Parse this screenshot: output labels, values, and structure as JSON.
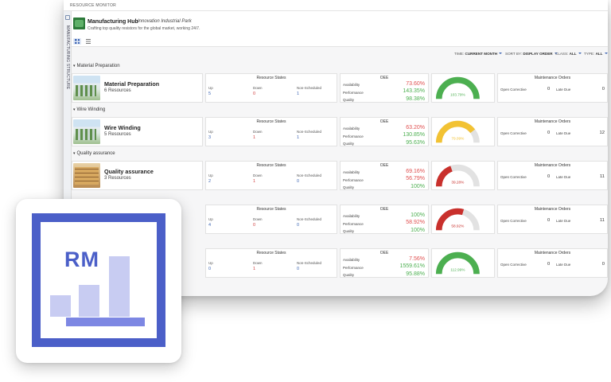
{
  "app": {
    "title": "RESOURCE MONITOR",
    "side_label": "MANUFACTURING STRUCTURE"
  },
  "header": {
    "title": "Manufacturing Hub",
    "location": "Innovation Industrial Park",
    "description": "Crafting top quality resistors for the global market, working 24/7."
  },
  "filters": [
    {
      "label": "TIME:",
      "value": "CURRENT MONTH"
    },
    {
      "label": "SORT BY:",
      "value": "DISPLAY ORDER"
    },
    {
      "label": "CLASS:",
      "value": "ALL"
    },
    {
      "label": "TYPE:",
      "value": "ALL"
    }
  ],
  "card_labels": {
    "resource_states": "Resource States",
    "up": "Up",
    "down": "Down",
    "non_scheduled": "Non-Scheduled",
    "oee": "OEE",
    "availability": "Availability",
    "performance": "Performance",
    "quality": "Quality",
    "maintenance": "Maintenance Orders",
    "open_corrective": "Open Corrective",
    "late_due": "Late Due"
  },
  "sections": [
    {
      "title": "Material Preparation",
      "name": "Material Preparation",
      "count": "6 Resources",
      "image": "green-machines",
      "up": "5",
      "down": "0",
      "non_scheduled": "1",
      "availability": "73.60%",
      "availability_color": "#e05050",
      "performance": "143.35%",
      "performance_color": "#4caf50",
      "quality": "98.38%",
      "quality_color": "#4caf50",
      "oee": "103.79%",
      "oee_fraction": 1.0,
      "gauge_color": "#4caf50",
      "open_corrective": "0",
      "late_due": "0"
    },
    {
      "title": "Wire Winding",
      "name": "Wire Winding",
      "count": "5 Resources",
      "image": "green-machines",
      "up": "3",
      "down": "1",
      "non_scheduled": "1",
      "availability": "63.20%",
      "availability_color": "#e05050",
      "performance": "130.85%",
      "performance_color": "#4caf50",
      "quality": "95.63%",
      "quality_color": "#4caf50",
      "oee": "79.09%",
      "oee_fraction": 0.79,
      "gauge_color": "#f2c233",
      "open_corrective": "0",
      "late_due": "12"
    },
    {
      "title": "Quality assurance",
      "name": "Quality assurance",
      "count": "3 Resources",
      "image": "wood-pallets",
      "up": "2",
      "down": "1",
      "non_scheduled": "0",
      "availability": "69.16%",
      "availability_color": "#e05050",
      "performance": "56.79%",
      "performance_color": "#e05050",
      "quality": "100%",
      "quality_color": "#4caf50",
      "oee": "39.28%",
      "oee_fraction": 0.39,
      "gauge_color": "#c9302c",
      "open_corrective": "0",
      "late_due": "11"
    },
    {
      "title": "",
      "name": "",
      "count": "",
      "image": "",
      "up": "4",
      "down": "0",
      "non_scheduled": "0",
      "availability": "100%",
      "availability_color": "#4caf50",
      "performance": "58.92%",
      "performance_color": "#e05050",
      "quality": "100%",
      "quality_color": "#4caf50",
      "oee": "58.92%",
      "oee_fraction": 0.59,
      "gauge_color": "#c9302c",
      "open_corrective": "0",
      "late_due": "11"
    },
    {
      "title": "",
      "name": "",
      "count": "",
      "image": "",
      "up": "0",
      "down": "1",
      "non_scheduled": "0",
      "availability": "7.56%",
      "availability_color": "#e05050",
      "performance": "1559.61%",
      "performance_color": "#4caf50",
      "quality": "95.88%",
      "quality_color": "#4caf50",
      "oee": "112.99%",
      "oee_fraction": 1.0,
      "gauge_color": "#4caf50",
      "open_corrective": "0",
      "late_due": "0"
    }
  ],
  "logo": {
    "text": "RM",
    "bar_levels": [
      0.32,
      0.48,
      0.9
    ]
  }
}
